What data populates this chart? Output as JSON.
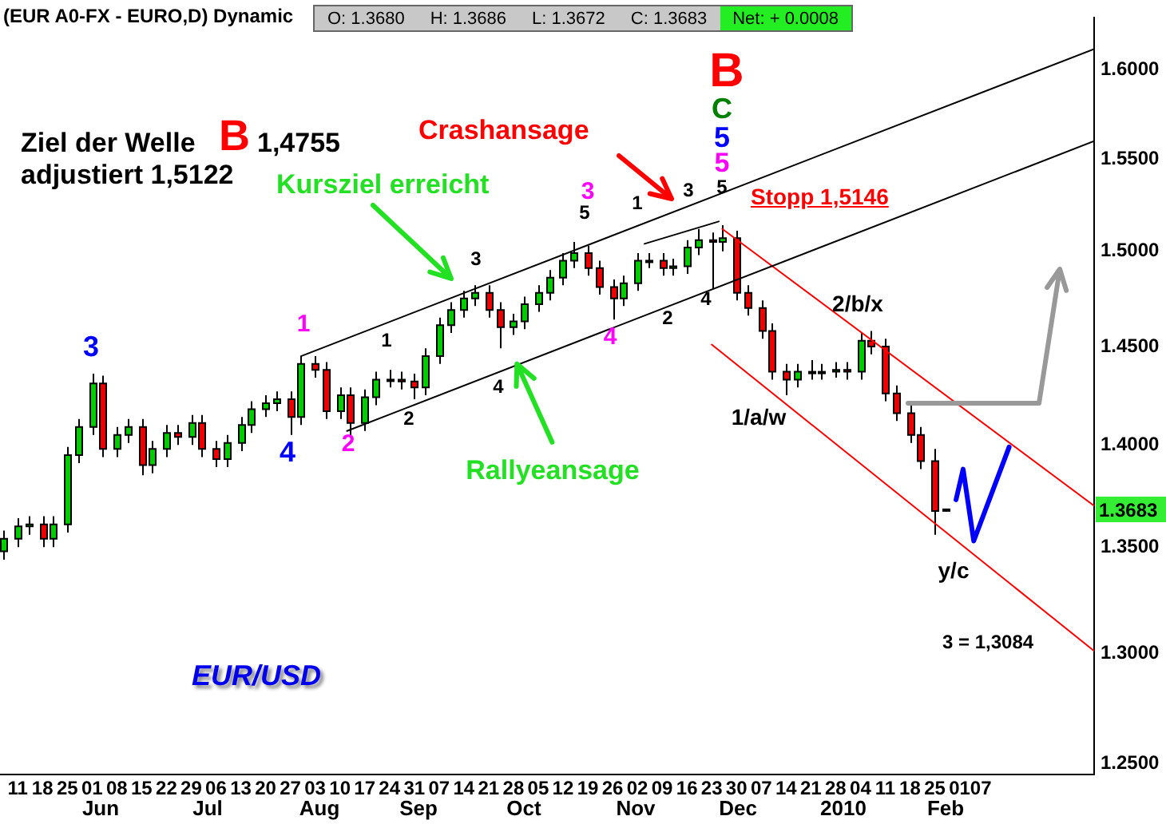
{
  "chart_data": {
    "type": "candlestick",
    "title": "(EUR A0-FX - EURO,D) Dynamic",
    "x": [
      "2009-05-07",
      "2009-05-11",
      "2009-05-14",
      "2009-05-18",
      "2009-05-21",
      "2009-05-25",
      "2009-05-28",
      "2009-06-01",
      "2009-06-04",
      "2009-06-08",
      "2009-06-11",
      "2009-06-15",
      "2009-06-18",
      "2009-06-22",
      "2009-06-25",
      "2009-06-29",
      "2009-07-02",
      "2009-07-06",
      "2009-07-09",
      "2009-07-13",
      "2009-07-16",
      "2009-07-20",
      "2009-07-23",
      "2009-07-27",
      "2009-07-30",
      "2009-08-03",
      "2009-08-06",
      "2009-08-10",
      "2009-08-13",
      "2009-08-17",
      "2009-08-20",
      "2009-08-24",
      "2009-08-27",
      "2009-08-31",
      "2009-09-03",
      "2009-09-07",
      "2009-09-10",
      "2009-09-14",
      "2009-09-17",
      "2009-09-21",
      "2009-09-24",
      "2009-09-28",
      "2009-10-01",
      "2009-10-05",
      "2009-10-08",
      "2009-10-12",
      "2009-10-15",
      "2009-10-19",
      "2009-10-22",
      "2009-10-26",
      "2009-10-29",
      "2009-11-02",
      "2009-11-05",
      "2009-11-09",
      "2009-11-12",
      "2009-11-16",
      "2009-11-19",
      "2009-11-23",
      "2009-11-26",
      "2009-11-30",
      "2009-12-03",
      "2009-12-07",
      "2009-12-10",
      "2009-12-14",
      "2009-12-17",
      "2009-12-21",
      "2009-12-24",
      "2009-12-28",
      "2009-12-31",
      "2010-01-04",
      "2010-01-07",
      "2010-01-11",
      "2010-01-14",
      "2010-01-18",
      "2010-01-21",
      "2010-01-25",
      "2010-01-28"
    ],
    "ohlc": [
      [
        1.348,
        1.358,
        1.344,
        1.354
      ],
      [
        1.354,
        1.364,
        1.35,
        1.36
      ],
      [
        1.36,
        1.365,
        1.356,
        1.361
      ],
      [
        1.361,
        1.365,
        1.35,
        1.354
      ],
      [
        1.354,
        1.365,
        1.35,
        1.361
      ],
      [
        1.361,
        1.399,
        1.357,
        1.395
      ],
      [
        1.395,
        1.413,
        1.391,
        1.409
      ],
      [
        1.409,
        1.436,
        1.405,
        1.431
      ],
      [
        1.431,
        1.435,
        1.394,
        1.398
      ],
      [
        1.398,
        1.409,
        1.394,
        1.405
      ],
      [
        1.405,
        1.413,
        1.401,
        1.409
      ],
      [
        1.409,
        1.413,
        1.385,
        1.39
      ],
      [
        1.39,
        1.402,
        1.386,
        1.398
      ],
      [
        1.398,
        1.41,
        1.394,
        1.406
      ],
      [
        1.406,
        1.41,
        1.4,
        1.404
      ],
      [
        1.404,
        1.415,
        1.4,
        1.411
      ],
      [
        1.411,
        1.415,
        1.394,
        1.398
      ],
      [
        1.398,
        1.402,
        1.389,
        1.393
      ],
      [
        1.393,
        1.405,
        1.389,
        1.401
      ],
      [
        1.401,
        1.414,
        1.397,
        1.41
      ],
      [
        1.41,
        1.422,
        1.406,
        1.418
      ],
      [
        1.418,
        1.425,
        1.414,
        1.421
      ],
      [
        1.421,
        1.427,
        1.417,
        1.423
      ],
      [
        1.423,
        1.427,
        1.405,
        1.414
      ],
      [
        1.414,
        1.445,
        1.41,
        1.441
      ],
      [
        1.441,
        1.445,
        1.434,
        1.438
      ],
      [
        1.438,
        1.442,
        1.413,
        1.417
      ],
      [
        1.417,
        1.429,
        1.413,
        1.425
      ],
      [
        1.425,
        1.429,
        1.404,
        1.411
      ],
      [
        1.411,
        1.428,
        1.407,
        1.424
      ],
      [
        1.424,
        1.437,
        1.42,
        1.433
      ],
      [
        1.433,
        1.438,
        1.429,
        1.433
      ],
      [
        1.433,
        1.437,
        1.428,
        1.432
      ],
      [
        1.432,
        1.436,
        1.423,
        1.429
      ],
      [
        1.429,
        1.449,
        1.425,
        1.445
      ],
      [
        1.445,
        1.465,
        1.441,
        1.461
      ],
      [
        1.461,
        1.473,
        1.457,
        1.469
      ],
      [
        1.469,
        1.479,
        1.465,
        1.475
      ],
      [
        1.475,
        1.482,
        1.471,
        1.478
      ],
      [
        1.478,
        1.482,
        1.465,
        1.469
      ],
      [
        1.469,
        1.473,
        1.449,
        1.46
      ],
      [
        1.46,
        1.467,
        1.456,
        1.463
      ],
      [
        1.463,
        1.476,
        1.459,
        1.472
      ],
      [
        1.472,
        1.482,
        1.468,
        1.478
      ],
      [
        1.478,
        1.49,
        1.474,
        1.486
      ],
      [
        1.486,
        1.499,
        1.482,
        1.495
      ],
      [
        1.495,
        1.505,
        1.491,
        1.499
      ],
      [
        1.499,
        1.503,
        1.487,
        1.491
      ],
      [
        1.491,
        1.495,
        1.477,
        1.481
      ],
      [
        1.481,
        1.485,
        1.464,
        1.475
      ],
      [
        1.475,
        1.487,
        1.471,
        1.483
      ],
      [
        1.483,
        1.499,
        1.479,
        1.495
      ],
      [
        1.495,
        1.499,
        1.491,
        1.495
      ],
      [
        1.495,
        1.499,
        1.487,
        1.491
      ],
      [
        1.491,
        1.496,
        1.487,
        1.492
      ],
      [
        1.492,
        1.506,
        1.488,
        1.502
      ],
      [
        1.502,
        1.512,
        1.498,
        1.506
      ],
      [
        1.506,
        1.51,
        1.48,
        1.505
      ],
      [
        1.505,
        1.514,
        1.5,
        1.507
      ],
      [
        1.507,
        1.511,
        1.474,
        1.478
      ],
      [
        1.478,
        1.482,
        1.466,
        1.47
      ],
      [
        1.47,
        1.474,
        1.454,
        1.458
      ],
      [
        1.458,
        1.462,
        1.433,
        1.437
      ],
      [
        1.437,
        1.441,
        1.425,
        1.433
      ],
      [
        1.433,
        1.441,
        1.429,
        1.437
      ],
      [
        1.437,
        1.443,
        1.433,
        1.437
      ],
      [
        1.437,
        1.441,
        1.433,
        1.437
      ],
      [
        1.437,
        1.442,
        1.434,
        1.438
      ],
      [
        1.438,
        1.442,
        1.433,
        1.437
      ],
      [
        1.437,
        1.457,
        1.433,
        1.453
      ],
      [
        1.453,
        1.458,
        1.446,
        1.45
      ],
      [
        1.45,
        1.454,
        1.422,
        1.426
      ],
      [
        1.426,
        1.43,
        1.412,
        1.416
      ],
      [
        1.416,
        1.42,
        1.401,
        1.405
      ],
      [
        1.405,
        1.409,
        1.388,
        1.392
      ],
      [
        1.392,
        1.398,
        1.356,
        1.3675
      ],
      [
        1.368,
        1.3686,
        1.3672,
        1.3683
      ]
    ],
    "series": [
      {
        "type": "line",
        "color": "#000000",
        "x": [
          "2009-07-30",
          "2010-03-11"
        ],
        "values": [
          1.445,
          1.612
        ]
      },
      {
        "type": "line",
        "color": "#000000",
        "x": [
          "2009-08-12",
          "2010-03-11"
        ],
        "values": [
          1.407,
          1.56
        ]
      },
      {
        "type": "line",
        "color": "#000000",
        "x": [
          "2009-11-04",
          "2009-11-25"
        ],
        "values": [
          1.504,
          1.516
        ]
      },
      {
        "type": "line",
        "color": "#ff0000",
        "x": [
          "2009-11-26",
          "2010-03-11"
        ],
        "values": [
          1.512,
          1.37
        ]
      },
      {
        "type": "line",
        "color": "#ff0000",
        "x": [
          "2009-11-23",
          "2010-03-11"
        ],
        "values": [
          1.451,
          1.301
        ]
      },
      {
        "type": "line",
        "color": "#0000ff",
        "x": [
          "2010-01-31",
          "2010-02-02",
          "2010-02-05",
          "2010-02-15"
        ],
        "values": [
          1.373,
          1.388,
          1.353,
          1.399
        ]
      }
    ],
    "xlim": [
      "2009-05-06",
      "2010-03-11"
    ],
    "xticks": [
      {
        "value": "2009-05-11",
        "label": "11"
      },
      {
        "value": "2009-05-18",
        "label": "18"
      },
      {
        "value": "2009-05-25",
        "label": "25"
      },
      {
        "value": "2009-06-01",
        "label": "01"
      },
      {
        "value": "2009-06-08",
        "label": "08"
      },
      {
        "value": "2009-06-15",
        "label": "15"
      },
      {
        "value": "2009-06-22",
        "label": "22"
      },
      {
        "value": "2009-06-29",
        "label": "29"
      },
      {
        "value": "2009-07-06",
        "label": "06"
      },
      {
        "value": "2009-07-13",
        "label": "13"
      },
      {
        "value": "2009-07-20",
        "label": "20"
      },
      {
        "value": "2009-07-27",
        "label": "27"
      },
      {
        "value": "2009-08-03",
        "label": "03"
      },
      {
        "value": "2009-08-10",
        "label": "10"
      },
      {
        "value": "2009-08-17",
        "label": "17"
      },
      {
        "value": "2009-08-24",
        "label": "24"
      },
      {
        "value": "2009-08-31",
        "label": "31"
      },
      {
        "value": "2009-09-07",
        "label": "07"
      },
      {
        "value": "2009-09-14",
        "label": "14"
      },
      {
        "value": "2009-09-21",
        "label": "21"
      },
      {
        "value": "2009-09-28",
        "label": "28"
      },
      {
        "value": "2009-10-05",
        "label": "05"
      },
      {
        "value": "2009-10-12",
        "label": "12"
      },
      {
        "value": "2009-10-19",
        "label": "19"
      },
      {
        "value": "2009-10-26",
        "label": "26"
      },
      {
        "value": "2009-11-02",
        "label": "02"
      },
      {
        "value": "2009-11-09",
        "label": "09"
      },
      {
        "value": "2009-11-16",
        "label": "16"
      },
      {
        "value": "2009-11-23",
        "label": "23"
      },
      {
        "value": "2009-11-30",
        "label": "30"
      },
      {
        "value": "2009-12-07",
        "label": "07"
      },
      {
        "value": "2009-12-14",
        "label": "14"
      },
      {
        "value": "2009-12-21",
        "label": "21"
      },
      {
        "value": "2009-12-28",
        "label": "28"
      },
      {
        "value": "2010-01-04",
        "label": "04"
      },
      {
        "value": "2010-01-11",
        "label": "11"
      },
      {
        "value": "2010-01-18",
        "label": "18"
      },
      {
        "value": "2010-01-25",
        "label": "25"
      },
      {
        "value": "2010-02-01",
        "label": "01"
      },
      {
        "value": "2010-02-07",
        "label": "07"
      }
    ],
    "ylim": [
      1.245,
      1.63
    ],
    "log": true,
    "yticks": [
      {
        "value": 1.25,
        "label": "1.2500"
      },
      {
        "value": 1.3,
        "label": "1.3000"
      },
      {
        "value": 1.35,
        "label": "1.3500"
      },
      {
        "value": 1.4,
        "label": "1.4000"
      },
      {
        "value": 1.45,
        "label": "1.4500"
      },
      {
        "value": 1.5,
        "label": "1.5000"
      },
      {
        "value": 1.55,
        "label": "1.5500"
      },
      {
        "value": 1.6,
        "label": "1.6000"
      }
    ],
    "marker": "none",
    "annotations": [
      "O: 1.3680",
      "H: 1.3686",
      "L: 1.3672",
      "C: 1.3683",
      "Net: + 0.0008",
      "Ziel der Welle",
      "B",
      "1,4755",
      "adjustiert 1,5122",
      "Stopp 1,5146",
      "3 = 1,3084",
      "EUR/USD",
      "3",
      "4",
      "1",
      "2",
      "1",
      "2",
      "3",
      "4",
      "3",
      "5",
      "4",
      "1",
      "2",
      "3",
      "4",
      "5",
      "5",
      "5",
      "C",
      "B",
      "1/a/w",
      "2/b/x",
      "y/c",
      "Kursziel erreicht",
      {
        "text": "Rallyeansage",
        "x": "2009-09-29",
        "y": 1.441
      },
      "Crashansage",
      "Jun",
      "Jul",
      "Aug",
      "Sep",
      "Oct",
      "Nov",
      "Dec",
      "2010",
      "Feb",
      {
        "text": "1.3683",
        "y": 1.3683
      }
    ]
  }
}
